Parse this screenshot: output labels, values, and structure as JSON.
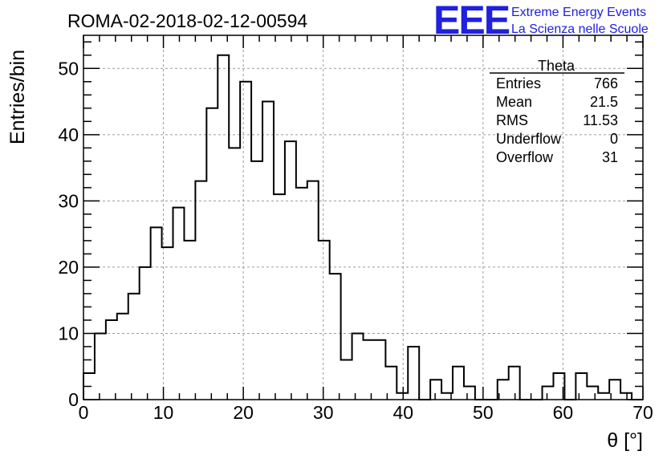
{
  "title": "ROMA-02-2018-02-12-00594",
  "logo": {
    "mark": "EEE",
    "line1": "Extreme Energy Events",
    "line2": "La Scienza nelle Scuole",
    "color": "#2020e0"
  },
  "stats": {
    "name": "Theta",
    "rows": [
      {
        "label": "Entries",
        "value": "766"
      },
      {
        "label": "Mean",
        "value": "21.5"
      },
      {
        "label": "RMS",
        "value": "11.53"
      },
      {
        "label": "Underflow",
        "value": "0"
      },
      {
        "label": "Overflow",
        "value": "31"
      }
    ]
  },
  "chart_data": {
    "type": "bar",
    "style": "step-histogram",
    "xlabel": "θ [°]",
    "ylabel": "Entries/bin",
    "xlim": [
      0,
      70
    ],
    "ylim": [
      0,
      55
    ],
    "bin_width": 1.4,
    "x_ticks": [
      0,
      10,
      20,
      30,
      40,
      50,
      60,
      70
    ],
    "y_ticks": [
      0,
      10,
      20,
      30,
      40,
      50
    ],
    "grid": true,
    "values": [
      4,
      10,
      12,
      13,
      16,
      20,
      26,
      23,
      29,
      24,
      33,
      44,
      52,
      38,
      48,
      36,
      45,
      31,
      39,
      32,
      33,
      24,
      19,
      6,
      10,
      9,
      9,
      5,
      1,
      8,
      0,
      3,
      1,
      5,
      2,
      0,
      0,
      3,
      5,
      0,
      0,
      2,
      4,
      0,
      4,
      2,
      1,
      3,
      1,
      0
    ]
  }
}
